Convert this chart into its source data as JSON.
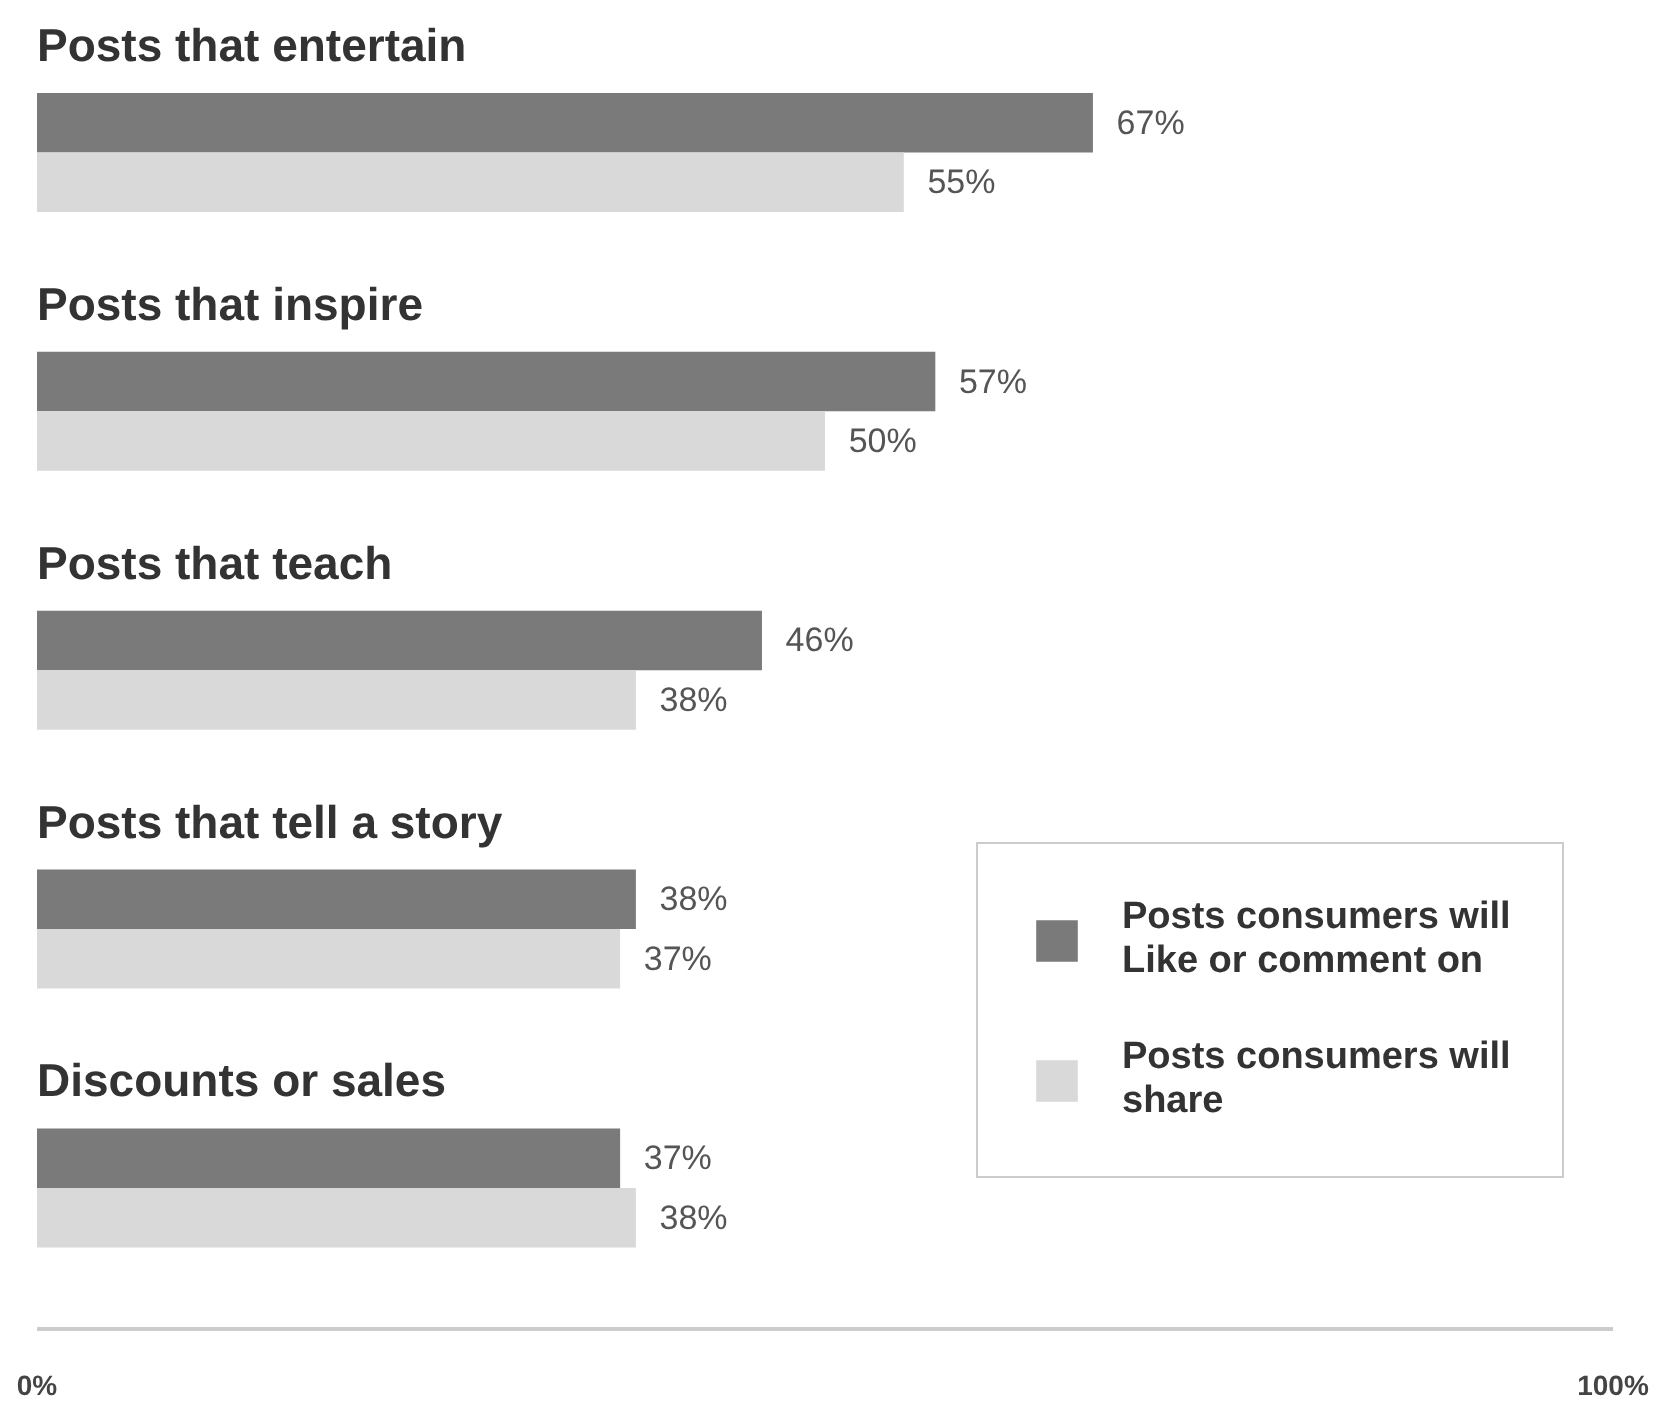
{
  "chart_data": {
    "type": "bar",
    "orientation": "horizontal",
    "categories": [
      "Posts that entertain",
      "Posts that inspire",
      "Posts that teach",
      "Posts that tell a story",
      "Discounts or sales"
    ],
    "series": [
      {
        "name": "Posts consumers will Like or comment on",
        "color": "#7a7a7a",
        "values": [
          67,
          57,
          46,
          38,
          37
        ],
        "value_labels": [
          "67%",
          "57%",
          "46%",
          "38%",
          "37%"
        ]
      },
      {
        "name": "Posts consumers will share",
        "color": "#d9d9d9",
        "values": [
          55,
          50,
          38,
          37,
          38
        ],
        "value_labels": [
          "55%",
          "50%",
          "38%",
          "37%",
          "38%"
        ]
      }
    ],
    "xlim": [
      0,
      100
    ],
    "xticks": [
      {
        "value": 0,
        "label": "0%"
      },
      {
        "value": 100,
        "label": "100%"
      }
    ],
    "legend": "bottom right"
  }
}
